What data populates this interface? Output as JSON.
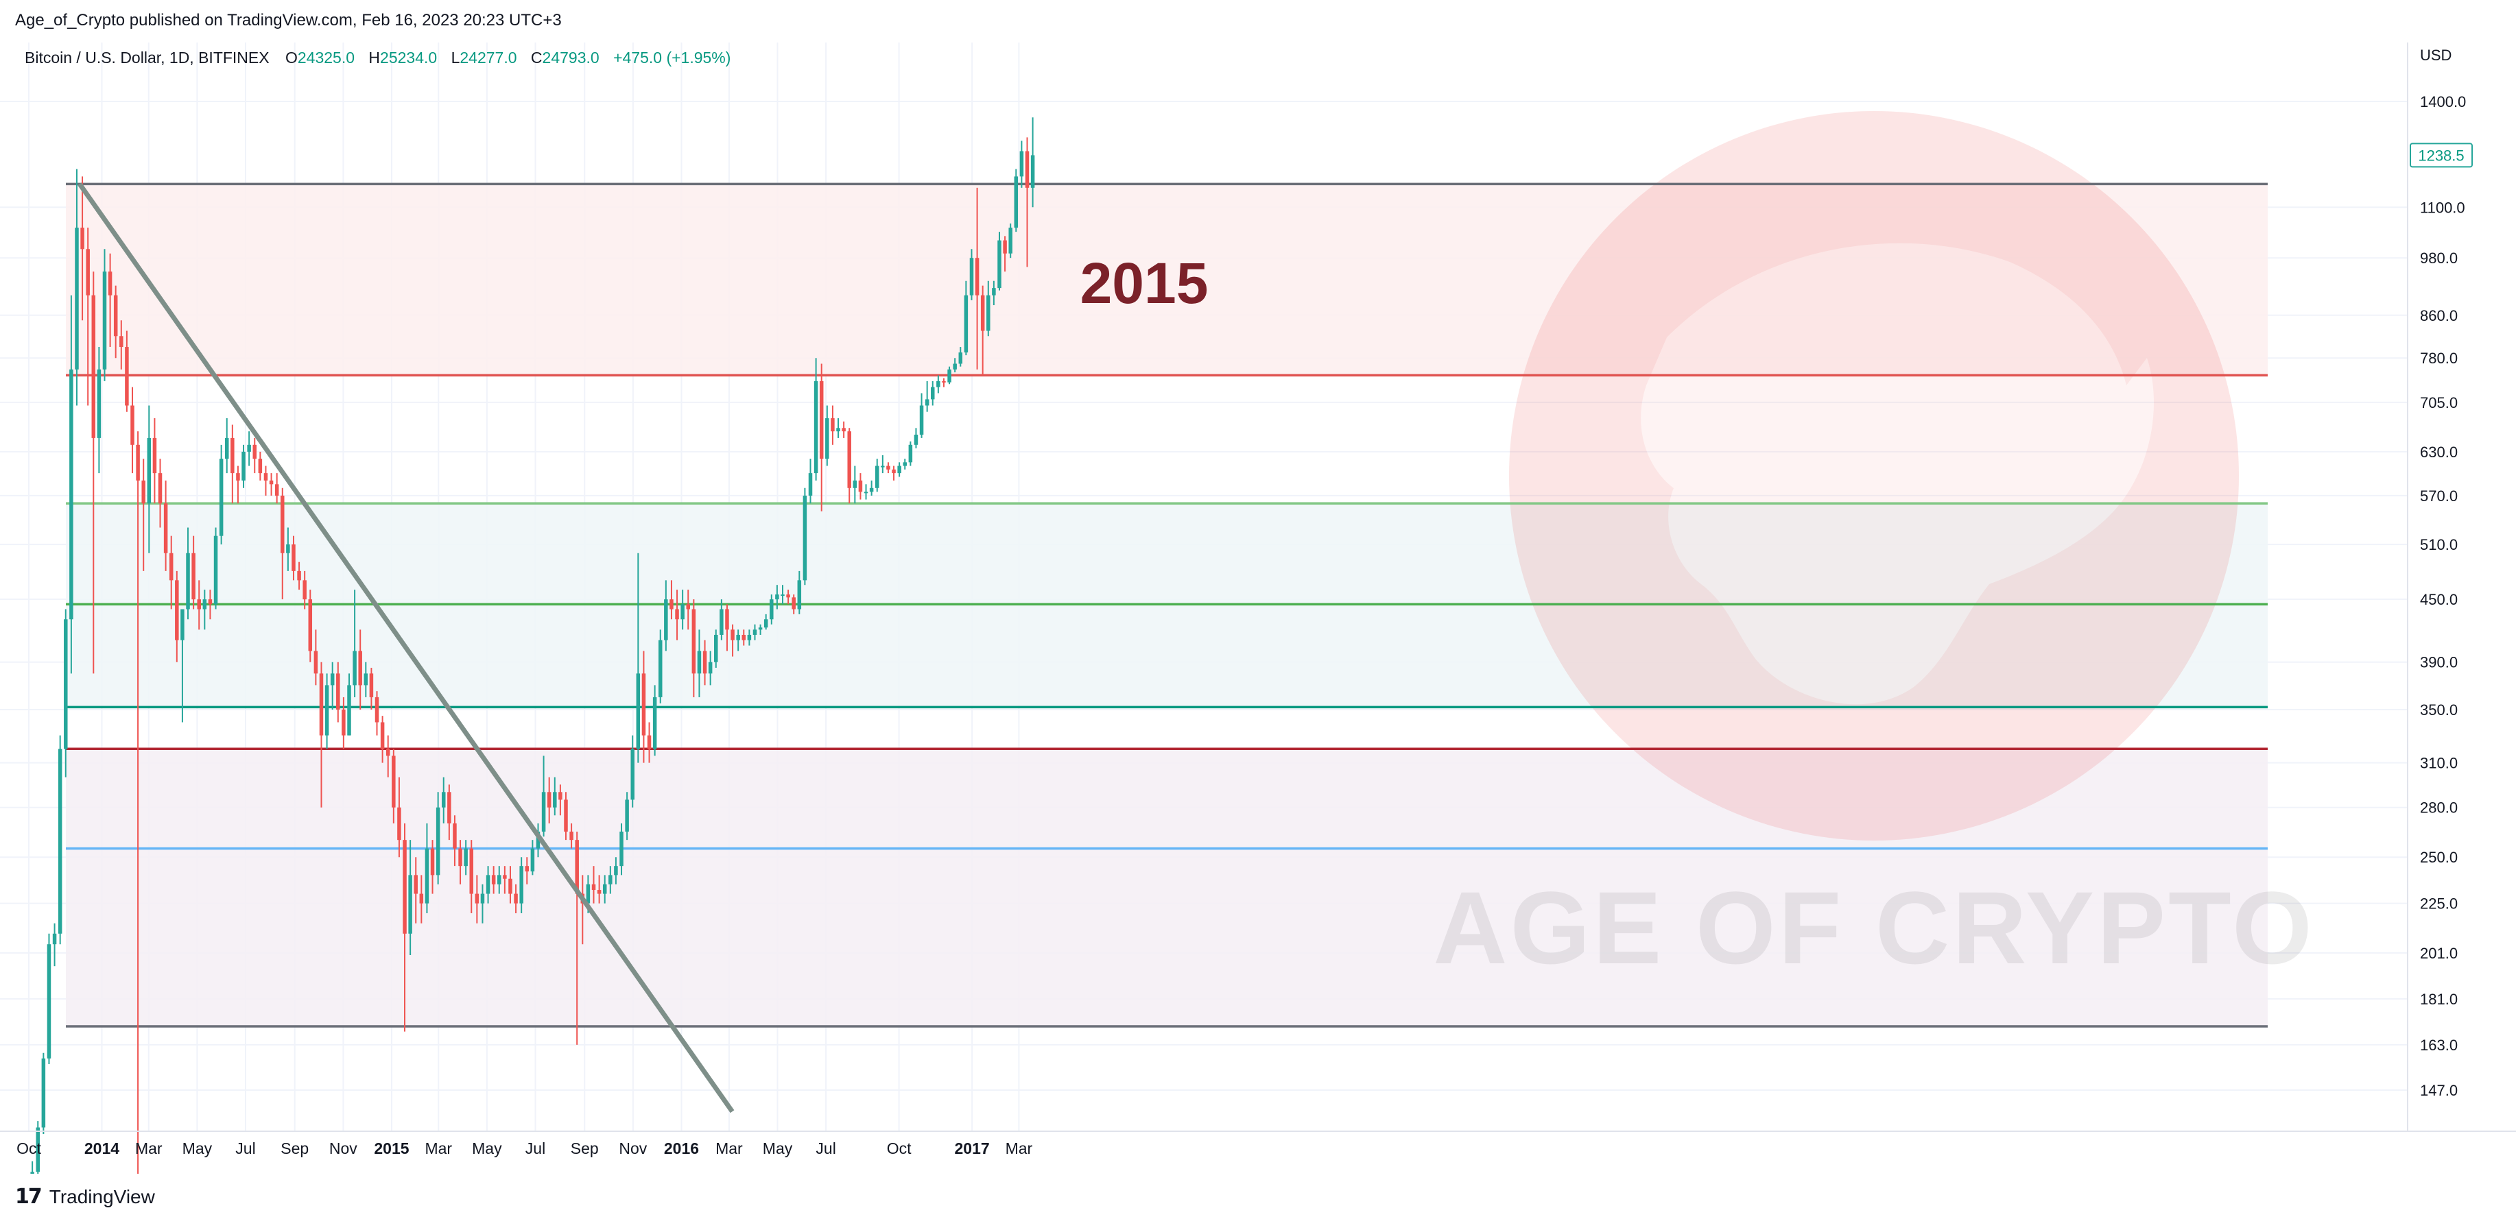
{
  "header": {
    "publish_line": "Age_of_Crypto published on TradingView.com, Feb 16, 2023 20:23 UTC+3"
  },
  "legend": {
    "symbol": "Bitcoin / U.S. Dollar, 1D, BITFINEX",
    "o_label": "O",
    "o_value": "24325.0",
    "h_label": "H",
    "h_value": "25234.0",
    "l_label": "L",
    "l_value": "24277.0",
    "c_label": "C",
    "c_value": "24793.0",
    "change": "+475.0 (+1.95%)"
  },
  "annotation": {
    "year_label": "2015",
    "color": "#7b2129"
  },
  "watermark": {
    "text": "AGE OF CRYPTO",
    "logo_icon": "bull-head-logo"
  },
  "footer": {
    "brand": "TradingView",
    "logo_icon": "tradingview-logo-icon"
  },
  "colors": {
    "up": "#26a69a",
    "down": "#ef5350",
    "trendline": "#7e8f89"
  },
  "chart_data": {
    "type": "candlestick",
    "currency": "USD",
    "last_price": "1238.5",
    "x_ticks": [
      "Oct",
      "2014",
      "Mar",
      "May",
      "Jul",
      "Sep",
      "Nov",
      "2015",
      "Mar",
      "May",
      "Jul",
      "Sep",
      "Nov",
      "2016",
      "Mar",
      "May",
      "Jul",
      "Oct",
      "2017",
      "Mar"
    ],
    "x_tick_dates": [
      "2013-10-01",
      "2014-01-01",
      "2014-03-01",
      "2014-05-01",
      "2014-07-01",
      "2014-09-01",
      "2014-11-01",
      "2015-01-01",
      "2015-03-01",
      "2015-05-01",
      "2015-07-01",
      "2015-09-01",
      "2015-11-01",
      "2016-01-01",
      "2016-03-01",
      "2016-05-01",
      "2016-07-01",
      "2016-10-01",
      "2017-01-01",
      "2017-03-01"
    ],
    "y_ticks": [
      "1400.0",
      "1100.0",
      "980.0",
      "860.0",
      "780.0",
      "705.0",
      "630.0",
      "570.0",
      "510.0",
      "450.0",
      "390.0",
      "350.0",
      "310.0",
      "280.0",
      "250.0",
      "225.0",
      "201.0",
      "181.0",
      "163.0",
      "147.0"
    ],
    "y_scale": "log",
    "horizontal_levels": [
      {
        "price": 1160,
        "color": "#6b6f78"
      },
      {
        "price": 750,
        "color": "#e05350"
      },
      {
        "price": 560,
        "color": "#81c784"
      },
      {
        "price": 445,
        "color": "#4caf50"
      },
      {
        "price": 352,
        "color": "#089981"
      },
      {
        "price": 320,
        "color": "#b22833"
      },
      {
        "price": 255,
        "color": "#64b5f6"
      },
      {
        "price": 170,
        "color": "#6b6f78"
      }
    ],
    "zones": [
      {
        "from": 750,
        "to": 1160,
        "color": "#fdeeee"
      },
      {
        "from": 352,
        "to": 560,
        "color": "#eef6f8"
      },
      {
        "from": 170,
        "to": 320,
        "color": "#f5eff5"
      }
    ],
    "trendline": {
      "start": [
        "2013-12-04",
        1160
      ],
      "end": [
        "2016-03-05",
        140
      ]
    },
    "candles_weekly": [
      [
        "2013-10-02",
        118,
        125,
        112,
        122
      ],
      [
        "2013-10-09",
        122,
        137,
        120,
        135
      ],
      [
        "2013-10-16",
        135,
        160,
        133,
        158
      ],
      [
        "2013-10-23",
        158,
        210,
        156,
        205
      ],
      [
        "2013-10-30",
        205,
        215,
        195,
        210
      ],
      [
        "2013-11-06",
        210,
        330,
        205,
        320
      ],
      [
        "2013-11-13",
        320,
        440,
        300,
        430
      ],
      [
        "2013-11-20",
        430,
        900,
        380,
        760
      ],
      [
        "2013-11-27",
        760,
        1200,
        700,
        1050
      ],
      [
        "2013-12-04",
        1050,
        1180,
        850,
        1000
      ],
      [
        "2013-12-11",
        1000,
        1050,
        700,
        900
      ],
      [
        "2013-12-18",
        900,
        950,
        380,
        650
      ],
      [
        "2013-12-25",
        650,
        800,
        600,
        760
      ],
      [
        "2014-01-01",
        760,
        1000,
        740,
        950
      ],
      [
        "2014-01-08",
        950,
        990,
        800,
        900
      ],
      [
        "2014-01-15",
        900,
        920,
        780,
        820
      ],
      [
        "2014-01-22",
        820,
        850,
        760,
        800
      ],
      [
        "2014-01-29",
        800,
        830,
        690,
        700
      ],
      [
        "2014-02-05",
        700,
        730,
        600,
        640
      ],
      [
        "2014-02-12",
        640,
        660,
        110,
        590
      ],
      [
        "2014-02-19",
        590,
        620,
        480,
        560
      ],
      [
        "2014-02-26",
        560,
        700,
        500,
        650
      ],
      [
        "2014-03-05",
        650,
        680,
        560,
        600
      ],
      [
        "2014-03-12",
        600,
        620,
        530,
        560
      ],
      [
        "2014-03-19",
        560,
        590,
        480,
        500
      ],
      [
        "2014-03-26",
        500,
        520,
        440,
        470
      ],
      [
        "2014-04-02",
        470,
        480,
        390,
        410
      ],
      [
        "2014-04-09",
        410,
        420,
        340,
        440
      ],
      [
        "2014-04-16",
        440,
        530,
        430,
        500
      ],
      [
        "2014-04-23",
        500,
        520,
        440,
        450
      ],
      [
        "2014-04-30",
        450,
        470,
        420,
        440
      ],
      [
        "2014-05-07",
        440,
        460,
        420,
        450
      ],
      [
        "2014-05-14",
        450,
        460,
        430,
        445
      ],
      [
        "2014-05-21",
        445,
        530,
        440,
        520
      ],
      [
        "2014-05-28",
        520,
        640,
        510,
        620
      ],
      [
        "2014-06-04",
        620,
        680,
        600,
        650
      ],
      [
        "2014-06-11",
        650,
        670,
        560,
        600
      ],
      [
        "2014-06-18",
        600,
        610,
        560,
        590
      ],
      [
        "2014-06-25",
        590,
        640,
        580,
        630
      ],
      [
        "2014-07-02",
        630,
        660,
        610,
        640
      ],
      [
        "2014-07-09",
        640,
        650,
        600,
        620
      ],
      [
        "2014-07-16",
        620,
        630,
        590,
        600
      ],
      [
        "2014-07-23",
        600,
        610,
        570,
        590
      ],
      [
        "2014-07-30",
        590,
        600,
        570,
        585
      ],
      [
        "2014-08-06",
        585,
        600,
        560,
        570
      ],
      [
        "2014-08-13",
        570,
        580,
        450,
        500
      ],
      [
        "2014-08-20",
        500,
        530,
        480,
        510
      ],
      [
        "2014-08-27",
        510,
        520,
        470,
        480
      ],
      [
        "2014-09-03",
        480,
        490,
        460,
        470
      ],
      [
        "2014-09-10",
        470,
        480,
        440,
        450
      ],
      [
        "2014-09-17",
        450,
        460,
        390,
        400
      ],
      [
        "2014-09-24",
        400,
        420,
        370,
        380
      ],
      [
        "2014-10-01",
        380,
        390,
        280,
        330
      ],
      [
        "2014-10-08",
        330,
        380,
        320,
        370
      ],
      [
        "2014-10-15",
        370,
        390,
        350,
        380
      ],
      [
        "2014-10-22",
        380,
        390,
        340,
        350
      ],
      [
        "2014-10-29",
        350,
        360,
        320,
        330
      ],
      [
        "2014-11-05",
        330,
        380,
        330,
        370
      ],
      [
        "2014-11-12",
        370,
        460,
        360,
        400
      ],
      [
        "2014-11-19",
        400,
        420,
        350,
        370
      ],
      [
        "2014-11-26",
        370,
        390,
        360,
        380
      ],
      [
        "2014-12-03",
        380,
        385,
        350,
        360
      ],
      [
        "2014-12-10",
        360,
        365,
        330,
        340
      ],
      [
        "2014-12-17",
        340,
        345,
        310,
        320
      ],
      [
        "2014-12-24",
        320,
        330,
        300,
        315
      ],
      [
        "2014-12-31",
        315,
        320,
        270,
        280
      ],
      [
        "2015-01-07",
        280,
        300,
        250,
        260
      ],
      [
        "2015-01-14",
        260,
        270,
        168,
        210
      ],
      [
        "2015-01-21",
        210,
        260,
        200,
        240
      ],
      [
        "2015-01-28",
        240,
        250,
        215,
        230
      ],
      [
        "2015-02-04",
        230,
        240,
        215,
        225
      ],
      [
        "2015-02-11",
        225,
        270,
        220,
        255
      ],
      [
        "2015-02-18",
        255,
        260,
        230,
        240
      ],
      [
        "2015-02-25",
        240,
        290,
        235,
        280
      ],
      [
        "2015-03-04",
        280,
        300,
        270,
        290
      ],
      [
        "2015-03-11",
        290,
        295,
        260,
        270
      ],
      [
        "2015-03-18",
        270,
        275,
        245,
        255
      ],
      [
        "2015-03-25",
        255,
        260,
        235,
        245
      ],
      [
        "2015-04-01",
        245,
        260,
        240,
        255
      ],
      [
        "2015-04-08",
        255,
        260,
        220,
        230
      ],
      [
        "2015-04-15",
        230,
        240,
        215,
        225
      ],
      [
        "2015-04-22",
        225,
        235,
        215,
        230
      ],
      [
        "2015-04-29",
        230,
        245,
        225,
        240
      ],
      [
        "2015-05-06",
        240,
        245,
        230,
        235
      ],
      [
        "2015-05-13",
        235,
        245,
        230,
        240
      ],
      [
        "2015-05-20",
        240,
        245,
        230,
        238
      ],
      [
        "2015-05-27",
        238,
        245,
        225,
        230
      ],
      [
        "2015-06-03",
        230,
        235,
        220,
        225
      ],
      [
        "2015-06-10",
        225,
        250,
        220,
        245
      ],
      [
        "2015-06-17",
        245,
        250,
        235,
        242
      ],
      [
        "2015-06-24",
        242,
        260,
        240,
        255
      ],
      [
        "2015-07-01",
        255,
        270,
        250,
        265
      ],
      [
        "2015-07-08",
        265,
        315,
        262,
        290
      ],
      [
        "2015-07-15",
        290,
        300,
        270,
        280
      ],
      [
        "2015-07-22",
        280,
        300,
        275,
        290
      ],
      [
        "2015-07-29",
        290,
        295,
        275,
        285
      ],
      [
        "2015-08-05",
        285,
        290,
        260,
        265
      ],
      [
        "2015-08-12",
        265,
        270,
        255,
        260
      ],
      [
        "2015-08-19",
        260,
        265,
        163,
        230
      ],
      [
        "2015-08-26",
        230,
        240,
        205,
        225
      ],
      [
        "2015-09-02",
        225,
        240,
        220,
        235
      ],
      [
        "2015-09-09",
        235,
        245,
        225,
        232
      ],
      [
        "2015-09-16",
        232,
        240,
        225,
        230
      ],
      [
        "2015-09-23",
        230,
        240,
        225,
        235
      ],
      [
        "2015-09-30",
        235,
        245,
        230,
        240
      ],
      [
        "2015-10-07",
        240,
        250,
        235,
        245
      ],
      [
        "2015-10-14",
        245,
        270,
        240,
        265
      ],
      [
        "2015-10-21",
        265,
        290,
        260,
        285
      ],
      [
        "2015-10-28",
        285,
        330,
        280,
        320
      ],
      [
        "2015-11-04",
        320,
        500,
        310,
        380
      ],
      [
        "2015-11-11",
        380,
        400,
        310,
        330
      ],
      [
        "2015-11-18",
        330,
        340,
        310,
        320
      ],
      [
        "2015-11-25",
        320,
        370,
        315,
        360
      ],
      [
        "2015-12-02",
        360,
        420,
        355,
        410
      ],
      [
        "2015-12-09",
        410,
        470,
        400,
        450
      ],
      [
        "2015-12-16",
        450,
        470,
        430,
        440
      ],
      [
        "2015-12-23",
        440,
        460,
        410,
        430
      ],
      [
        "2015-12-30",
        430,
        460,
        420,
        445
      ],
      [
        "2016-01-06",
        445,
        460,
        420,
        440
      ],
      [
        "2016-01-13",
        440,
        450,
        360,
        380
      ],
      [
        "2016-01-20",
        380,
        420,
        360,
        400
      ],
      [
        "2016-01-27",
        400,
        410,
        370,
        380
      ],
      [
        "2016-02-03",
        380,
        400,
        370,
        390
      ],
      [
        "2016-02-10",
        390,
        420,
        385,
        415
      ],
      [
        "2016-02-17",
        415,
        450,
        410,
        440
      ],
      [
        "2016-02-24",
        440,
        445,
        400,
        420
      ],
      [
        "2016-03-02",
        420,
        425,
        395,
        410
      ],
      [
        "2016-03-09",
        410,
        420,
        400,
        415
      ],
      [
        "2016-03-16",
        415,
        420,
        405,
        410
      ],
      [
        "2016-03-23",
        410,
        420,
        405,
        415
      ],
      [
        "2016-03-30",
        415,
        425,
        410,
        420
      ],
      [
        "2016-04-06",
        420,
        425,
        415,
        422
      ],
      [
        "2016-04-13",
        422,
        435,
        420,
        430
      ],
      [
        "2016-04-20",
        430,
        455,
        425,
        450
      ],
      [
        "2016-04-27",
        450,
        465,
        440,
        455
      ],
      [
        "2016-05-04",
        455,
        465,
        445,
        455
      ],
      [
        "2016-05-11",
        455,
        460,
        445,
        452
      ],
      [
        "2016-05-18",
        452,
        455,
        435,
        440
      ],
      [
        "2016-05-25",
        440,
        480,
        435,
        470
      ],
      [
        "2016-06-01",
        470,
        580,
        465,
        570
      ],
      [
        "2016-06-08",
        570,
        620,
        560,
        600
      ],
      [
        "2016-06-15",
        600,
        780,
        590,
        740
      ],
      [
        "2016-06-22",
        740,
        770,
        550,
        620
      ],
      [
        "2016-06-29",
        620,
        700,
        610,
        680
      ],
      [
        "2016-07-06",
        680,
        700,
        640,
        660
      ],
      [
        "2016-07-13",
        660,
        680,
        650,
        665
      ],
      [
        "2016-07-20",
        665,
        675,
        650,
        660
      ],
      [
        "2016-07-27",
        660,
        665,
        560,
        580
      ],
      [
        "2016-08-03",
        580,
        610,
        560,
        590
      ],
      [
        "2016-08-10",
        590,
        600,
        565,
        575
      ],
      [
        "2016-08-17",
        575,
        585,
        565,
        575
      ],
      [
        "2016-08-24",
        575,
        590,
        570,
        580
      ],
      [
        "2016-08-31",
        580,
        620,
        575,
        610
      ],
      [
        "2016-09-07",
        610,
        625,
        600,
        610
      ],
      [
        "2016-09-14",
        610,
        615,
        600,
        605
      ],
      [
        "2016-09-21",
        605,
        610,
        590,
        600
      ],
      [
        "2016-09-28",
        600,
        615,
        595,
        610
      ],
      [
        "2016-10-05",
        610,
        620,
        605,
        615
      ],
      [
        "2016-10-12",
        615,
        645,
        610,
        640
      ],
      [
        "2016-10-19",
        640,
        665,
        635,
        655
      ],
      [
        "2016-10-26",
        655,
        720,
        650,
        700
      ],
      [
        "2016-11-02",
        700,
        740,
        690,
        710
      ],
      [
        "2016-11-09",
        710,
        740,
        700,
        730
      ],
      [
        "2016-11-16",
        730,
        750,
        720,
        740
      ],
      [
        "2016-11-23",
        740,
        745,
        730,
        738
      ],
      [
        "2016-11-30",
        738,
        765,
        735,
        760
      ],
      [
        "2016-12-07",
        760,
        780,
        755,
        770
      ],
      [
        "2016-12-14",
        770,
        800,
        765,
        790
      ],
      [
        "2016-12-21",
        790,
        930,
        785,
        900
      ],
      [
        "2016-12-28",
        900,
        1000,
        890,
        980
      ],
      [
        "2017-01-04",
        980,
        1150,
        760,
        900
      ],
      [
        "2017-01-11",
        900,
        920,
        750,
        830
      ],
      [
        "2017-01-18",
        830,
        930,
        820,
        900
      ],
      [
        "2017-01-25",
        900,
        930,
        880,
        915
      ],
      [
        "2017-02-01",
        915,
        1040,
        910,
        1020
      ],
      [
        "2017-02-08",
        1020,
        1030,
        950,
        990
      ],
      [
        "2017-02-15",
        990,
        1060,
        980,
        1050
      ],
      [
        "2017-02-22",
        1050,
        1200,
        1040,
        1180
      ],
      [
        "2017-03-01",
        1180,
        1280,
        1150,
        1250
      ],
      [
        "2017-03-08",
        1250,
        1290,
        960,
        1150
      ],
      [
        "2017-03-15",
        1150,
        1350,
        1100,
        1238.5
      ]
    ]
  }
}
